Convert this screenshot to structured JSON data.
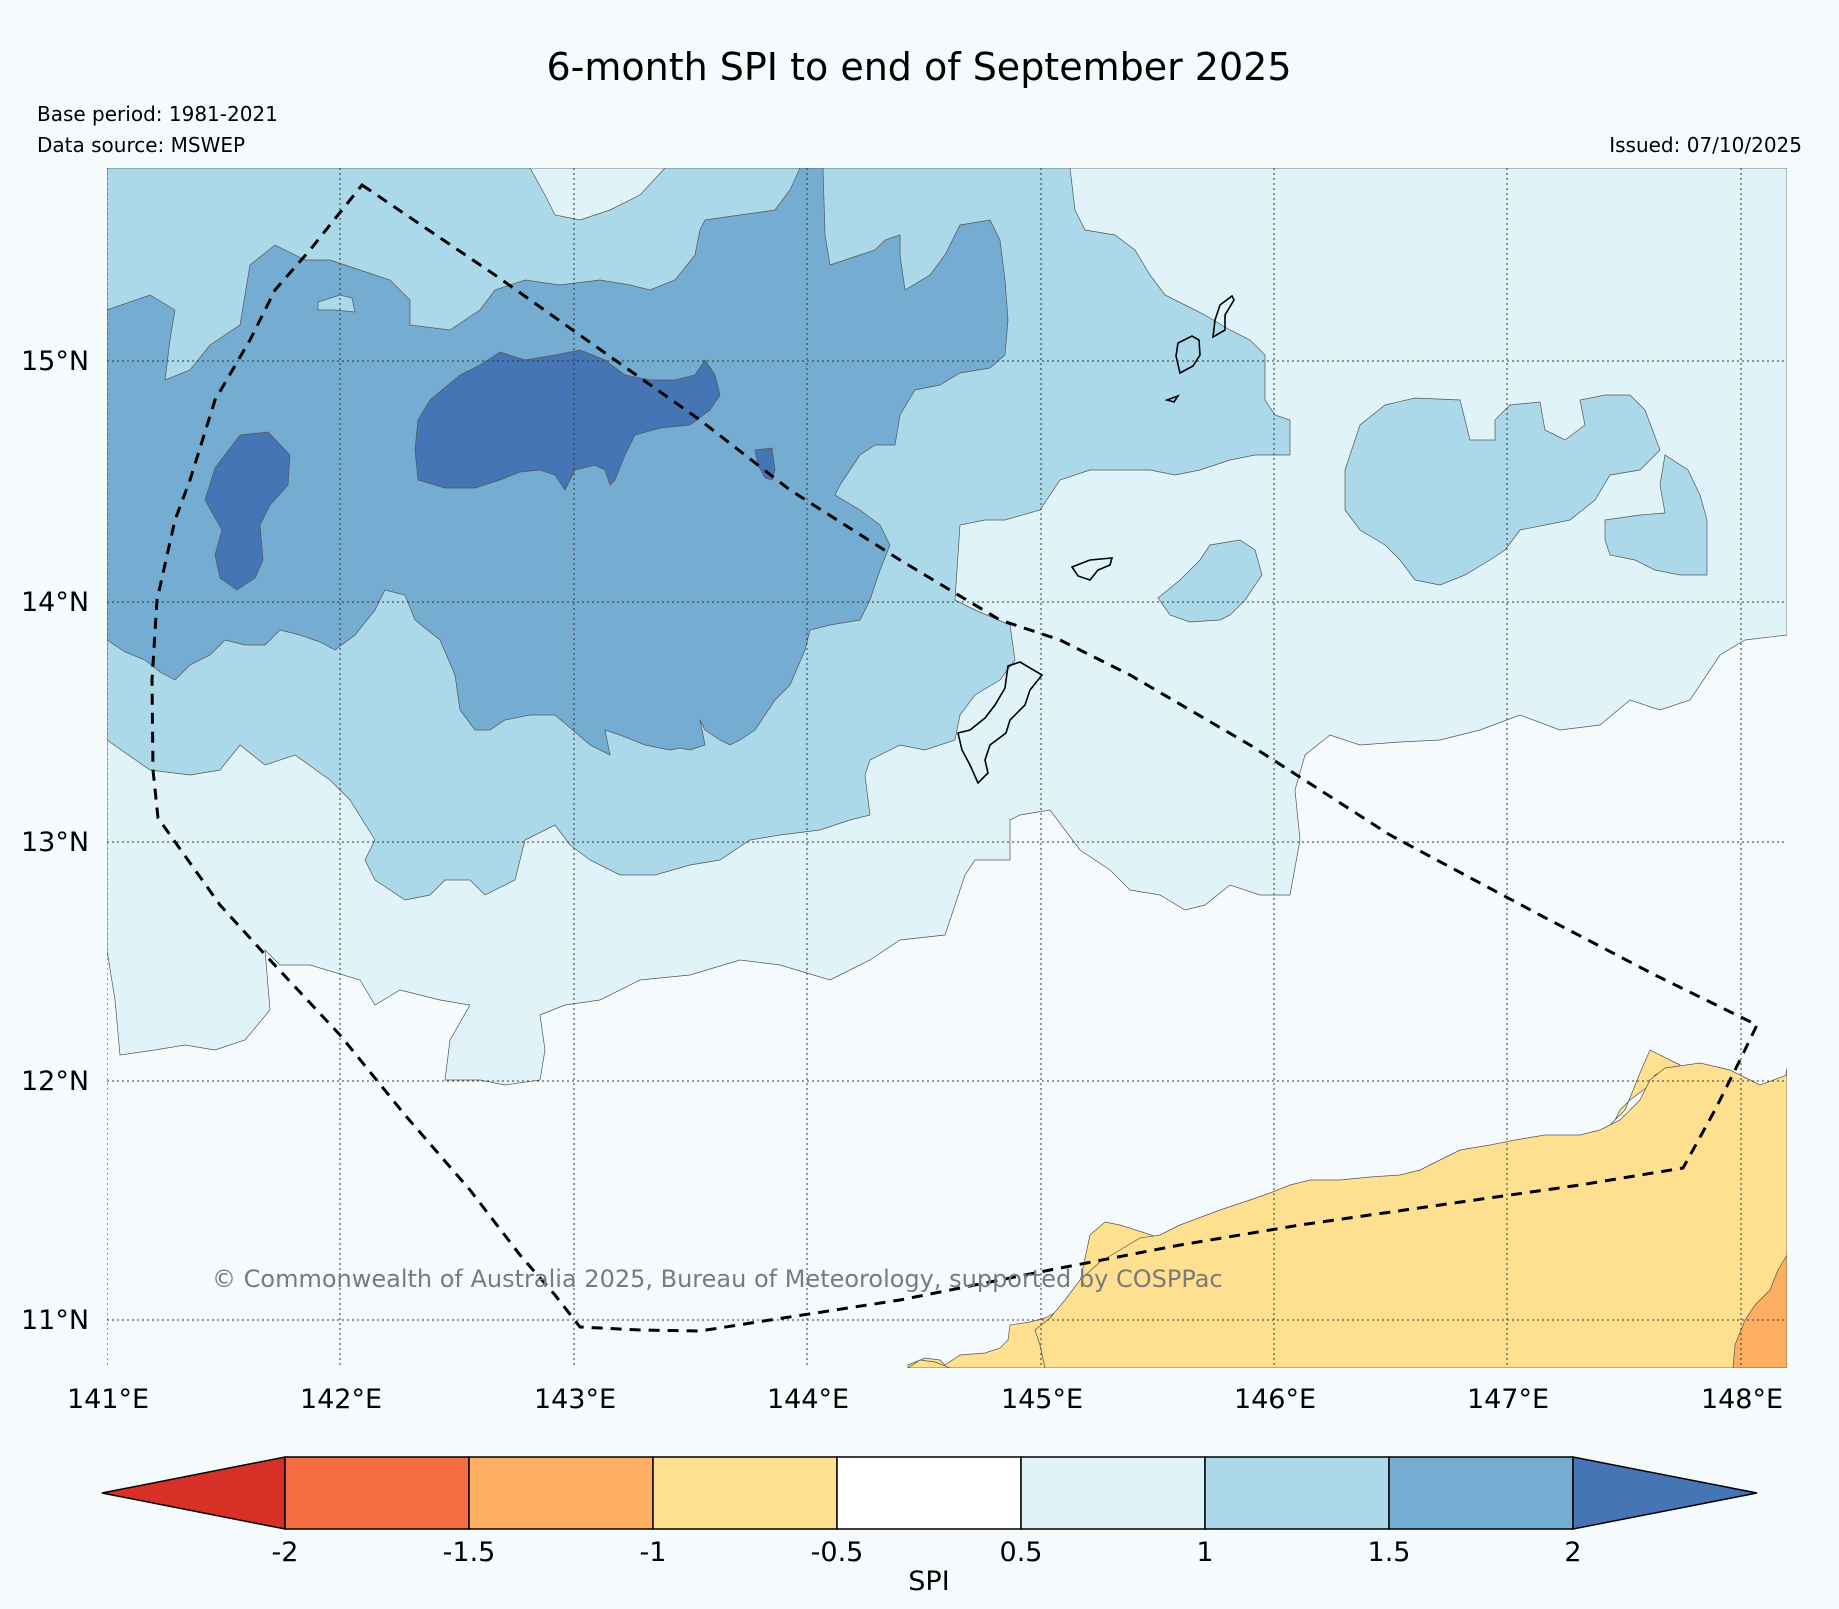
{
  "title": "6-month SPI to end of September 2025",
  "base_period": "Base period: 1981-2021",
  "data_source": "Data source: MSWEP",
  "issued": "Issued: 07/10/2025",
  "copyright": "© Commonwealth of Australia 2025, Bureau of Meteorology, supported by COSPPac",
  "lat_labels": [
    "15°N",
    "14°N",
    "13°N",
    "12°N",
    "11°N"
  ],
  "lon_labels": [
    "141°E",
    "142°E",
    "143°E",
    "144°E",
    "145°E",
    "146°E",
    "147°E",
    "148°E"
  ],
  "colorbar": {
    "label": "SPI",
    "ticks": [
      "-2",
      "-1.5",
      "-1",
      "-0.5",
      "0.5",
      "1",
      "1.5",
      "2"
    ],
    "colors": {
      "below_-2": "#d73027",
      "-2_-1.5": "#f46d43",
      "-1.5_-1": "#fdae61",
      "-1_-0.5": "#fee090",
      "-0.5_0.5": "#ffffff",
      "0.5_1": "#e0f3f8",
      "1_1.5": "#abd9e9",
      "1.5_2": "#74add1",
      "above_2": "#4575b4"
    }
  }
}
